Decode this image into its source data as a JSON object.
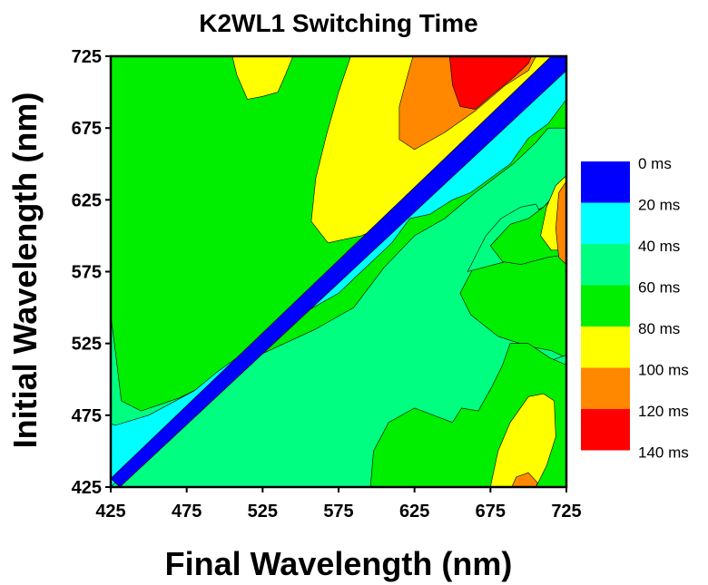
{
  "chart_data": {
    "type": "heatmap",
    "title": "K2WL1 Switching Time",
    "xlabel": "Final Wavelength (nm)",
    "ylabel": "Initial Wavelength (nm)",
    "xlim": [
      425,
      725
    ],
    "ylim": [
      425,
      725
    ],
    "xticks": [
      "425",
      "475",
      "525",
      "575",
      "625",
      "675",
      "725"
    ],
    "yticks": [
      "425",
      "475",
      "525",
      "575",
      "625",
      "675",
      "725"
    ],
    "legend": {
      "placement": "right",
      "levels": [
        {
          "label": "0 ms",
          "color": "#0000ff"
        },
        {
          "label": "20 ms",
          "color": "#00ffff"
        },
        {
          "label": "40 ms",
          "color": "#00ff80"
        },
        {
          "label": "60 ms",
          "color": "#00ee00"
        },
        {
          "label": "80 ms",
          "color": "#ffff00"
        },
        {
          "label": "100 ms",
          "color": "#ff8800"
        },
        {
          "label": "120 ms",
          "color": "#ff0000"
        },
        {
          "label": "140 ms",
          "color": ""
        }
      ]
    },
    "regions": [
      {
        "level": "60-80 ms",
        "color": "#00ee00",
        "points": [
          [
            425,
            725
          ],
          [
            725,
            725
          ],
          [
            725,
            425
          ],
          [
            425,
            425
          ]
        ]
      },
      {
        "level": "40-60 ms",
        "color": "#00ff80",
        "points": [
          [
            425,
            545
          ],
          [
            428,
            520
          ],
          [
            432,
            485
          ],
          [
            445,
            478
          ],
          [
            470,
            487
          ],
          [
            495,
            500
          ],
          [
            525,
            518
          ],
          [
            560,
            535
          ],
          [
            585,
            550
          ],
          [
            605,
            578
          ],
          [
            625,
            600
          ],
          [
            645,
            612
          ],
          [
            665,
            630
          ],
          [
            690,
            650
          ],
          [
            705,
            665
          ],
          [
            713,
            675
          ],
          [
            725,
            675
          ],
          [
            725,
            638
          ],
          [
            710,
            620
          ],
          [
            695,
            612
          ],
          [
            680,
            590
          ],
          [
            665,
            580
          ],
          [
            660,
            570
          ],
          [
            655,
            560
          ],
          [
            662,
            545
          ],
          [
            680,
            530
          ],
          [
            700,
            523
          ],
          [
            715,
            520
          ],
          [
            725,
            515
          ],
          [
            725,
            475
          ],
          [
            716,
            483
          ],
          [
            705,
            495
          ],
          [
            690,
            500
          ],
          [
            683,
            490
          ],
          [
            678,
            470
          ],
          [
            670,
            460
          ],
          [
            652,
            440
          ],
          [
            635,
            425
          ],
          [
            425,
            425
          ]
        ]
      },
      {
        "level": "40-60 ms",
        "color": "#00ff80",
        "points": [
          [
            695,
            450
          ],
          [
            702,
            495
          ],
          [
            712,
            512
          ],
          [
            725,
            517
          ],
          [
            725,
            430
          ],
          [
            708,
            425
          ]
        ]
      },
      {
        "level": "40-60 ms",
        "color": "#00ff80",
        "points": [
          [
            660,
            575
          ],
          [
            672,
            600
          ],
          [
            682,
            612
          ],
          [
            695,
            620
          ],
          [
            705,
            622
          ],
          [
            710,
            612
          ],
          [
            700,
            592
          ],
          [
            685,
            582
          ]
        ]
      },
      {
        "level": "60-80 ms",
        "color": "#00ee00",
        "points": [
          [
            596,
            425
          ],
          [
            598,
            450
          ],
          [
            608,
            470
          ],
          [
            625,
            480
          ],
          [
            650,
            470
          ],
          [
            656,
            480
          ],
          [
            667,
            478
          ],
          [
            676,
            495
          ],
          [
            683,
            510
          ],
          [
            688,
            525
          ],
          [
            700,
            525
          ],
          [
            714,
            515
          ],
          [
            725,
            510
          ],
          [
            725,
            425
          ]
        ]
      },
      {
        "level": "60-80 ms",
        "color": "#00ee00",
        "points": [
          [
            675,
            593
          ],
          [
            688,
            608
          ],
          [
            700,
            612
          ],
          [
            710,
            620
          ],
          [
            725,
            635
          ],
          [
            725,
            587
          ],
          [
            713,
            585
          ],
          [
            695,
            580
          ],
          [
            683,
            582
          ]
        ]
      },
      {
        "level": "80-100 ms",
        "color": "#ffff00",
        "points": [
          [
            675,
            425
          ],
          [
            680,
            450
          ],
          [
            688,
            470
          ],
          [
            700,
            488
          ],
          [
            710,
            490
          ],
          [
            717,
            485
          ],
          [
            718,
            460
          ],
          [
            712,
            440
          ],
          [
            705,
            425
          ]
        ]
      },
      {
        "level": "80-100 ms",
        "color": "#ffff00",
        "points": [
          [
            708,
            600
          ],
          [
            712,
            620
          ],
          [
            718,
            635
          ],
          [
            725,
            642
          ],
          [
            725,
            590
          ],
          [
            715,
            590
          ]
        ]
      },
      {
        "level": "80-100 ms",
        "color": "#ffff00",
        "points": [
          [
            505,
            725
          ],
          [
            508,
            712
          ],
          [
            515,
            695
          ],
          [
            525,
            697
          ],
          [
            535,
            700
          ],
          [
            540,
            712
          ],
          [
            545,
            725
          ]
        ]
      },
      {
        "level": "80-100 ms",
        "color": "#ffff00",
        "points": [
          [
            557,
            610
          ],
          [
            568,
            595
          ],
          [
            590,
            600
          ],
          [
            612,
            610
          ],
          [
            628,
            625
          ],
          [
            650,
            650
          ],
          [
            670,
            672
          ],
          [
            690,
            693
          ],
          [
            705,
            705
          ],
          [
            712,
            715
          ],
          [
            716,
            725
          ],
          [
            583,
            725
          ],
          [
            575,
            700
          ],
          [
            567,
            670
          ],
          [
            560,
            640
          ]
        ]
      },
      {
        "level": "100-120 ms",
        "color": "#ff8800",
        "points": [
          [
            615,
            667
          ],
          [
            625,
            660
          ],
          [
            645,
            672
          ],
          [
            665,
            687
          ],
          [
            685,
            705
          ],
          [
            700,
            715
          ],
          [
            705,
            725
          ],
          [
            624,
            725
          ],
          [
            620,
            710
          ],
          [
            615,
            690
          ]
        ]
      },
      {
        "level": "100-120 ms",
        "color": "#ff8800",
        "points": [
          [
            720,
            585
          ],
          [
            725,
            580
          ],
          [
            725,
            638
          ],
          [
            720,
            630
          ],
          [
            718,
            605
          ]
        ]
      },
      {
        "level": "100-120 ms",
        "color": "#ff8800",
        "points": [
          [
            689,
            425
          ],
          [
            692,
            432
          ],
          [
            700,
            435
          ],
          [
            706,
            428
          ],
          [
            705,
            425
          ]
        ]
      },
      {
        "level": "120-140 ms",
        "color": "#ff0000",
        "points": [
          [
            648,
            725
          ],
          [
            650,
            705
          ],
          [
            655,
            690
          ],
          [
            665,
            688
          ],
          [
            675,
            697
          ],
          [
            690,
            710
          ],
          [
            700,
            720
          ],
          [
            702,
            725
          ]
        ]
      },
      {
        "level": "20-40 ms",
        "color": "#00ffff",
        "points": [
          [
            425,
            425
          ],
          [
            725,
            725
          ],
          [
            725,
            695
          ],
          [
            713,
            678
          ],
          [
            700,
            668
          ],
          [
            688,
            650
          ],
          [
            675,
            640
          ],
          [
            662,
            630
          ],
          [
            650,
            625
          ],
          [
            635,
            615
          ],
          [
            622,
            612
          ],
          [
            610,
            595
          ],
          [
            600,
            585
          ],
          [
            590,
            575
          ],
          [
            575,
            560
          ],
          [
            555,
            548
          ],
          [
            540,
            538
          ],
          [
            520,
            520
          ],
          [
            508,
            515
          ],
          [
            495,
            505
          ],
          [
            480,
            492
          ],
          [
            450,
            475
          ],
          [
            428,
            468
          ],
          [
            425,
            469
          ]
        ]
      },
      {
        "level": "0-20 ms",
        "color": "#0000ff",
        "points": [
          [
            425,
            431
          ],
          [
            431,
            425
          ],
          [
            725,
            715
          ],
          [
            725,
            727
          ],
          [
            715,
            725
          ]
        ]
      }
    ]
  }
}
